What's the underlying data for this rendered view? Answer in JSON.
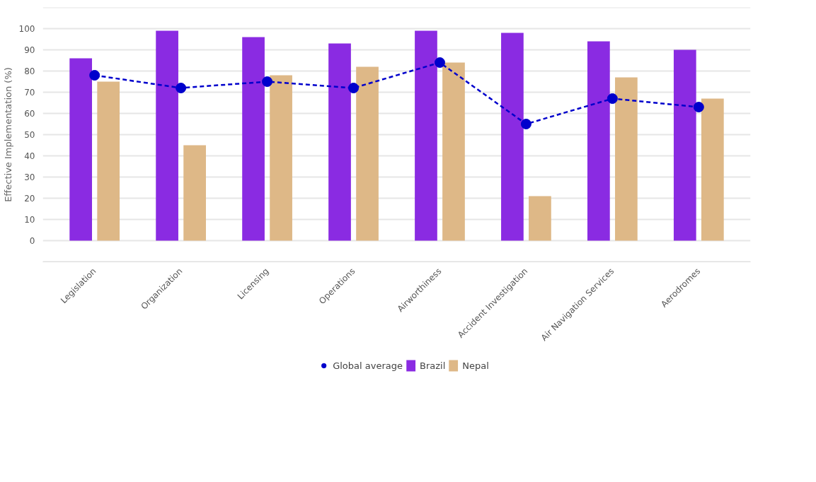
{
  "chart_data": {
    "type": "bar",
    "ylabel": "Effective Implementation (%)",
    "categories": [
      "Legislation",
      "Organization",
      "Licensing",
      "Operations",
      "Airworthiness",
      "Accident Investigation",
      "Air Navigation Services",
      "Aerodromes"
    ],
    "series": [
      {
        "name": "Global average",
        "type": "line",
        "color": "#0000cc",
        "marker": "circle",
        "line_style": "dashed",
        "values": [
          78,
          72,
          75,
          72,
          84,
          55,
          67,
          63
        ]
      },
      {
        "name": "Brazil",
        "color": "#8a2be2",
        "values": [
          86,
          99,
          96,
          93,
          99,
          98,
          94,
          90
        ]
      },
      {
        "name": "Nepal",
        "color": "#deb887",
        "values": [
          75,
          45,
          78,
          82,
          84,
          21,
          77,
          67
        ]
      }
    ],
    "ylim": [
      -10,
      110
    ],
    "yticks": [
      {
        "value": -10,
        "label": null
      },
      0,
      10,
      20,
      30,
      40,
      50,
      60,
      70,
      80,
      90,
      100,
      {
        "value": 110,
        "label": null
      }
    ],
    "grid": "y",
    "legend": "bottom"
  }
}
